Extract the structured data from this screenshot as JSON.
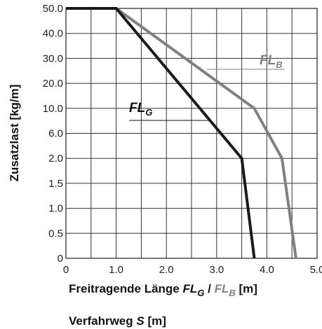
{
  "chart_data": {
    "type": "line",
    "title": "",
    "xlabel_parts": [
      "Freitragende Länge ",
      "FL",
      "G",
      " / ",
      "FL",
      "B",
      " [m]"
    ],
    "ylabel": "Zusatzlast [kg/m]",
    "sublabel_parts": [
      "Verfahrweg ",
      "S",
      " [m]"
    ],
    "x_ticks": [
      "0",
      "1.0",
      "2.0",
      "3.0",
      "4.0",
      "5.0"
    ],
    "x_range": [
      0,
      5
    ],
    "y_ticks": [
      "0",
      "0.5",
      "1.0",
      "1.5",
      "2.0",
      "6.0",
      "10.0",
      "20.0",
      "30.0",
      "40.0",
      "50.0"
    ],
    "y_scale": "categorical-nonlinear (equally spaced tick labels)",
    "grid": true,
    "series": [
      {
        "name_parts": [
          "FL",
          "G"
        ],
        "color": "#1a1a1a",
        "points": [
          [
            0,
            50.0
          ],
          [
            1.0,
            50.0
          ],
          [
            3.5,
            2.0
          ],
          [
            3.75,
            0
          ]
        ]
      },
      {
        "name_parts": [
          "FL",
          "B"
        ],
        "color": "#808080",
        "points": [
          [
            0,
            50.0
          ],
          [
            1.0,
            50.0
          ],
          [
            3.75,
            10.0
          ],
          [
            4.3,
            2.0
          ],
          [
            4.58,
            0
          ]
        ]
      }
    ]
  }
}
